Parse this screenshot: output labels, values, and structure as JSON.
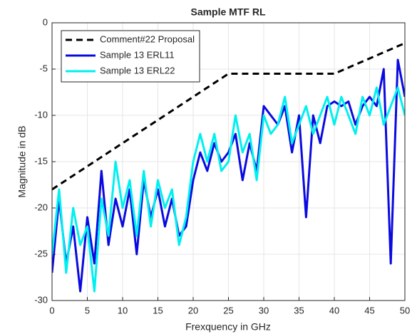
{
  "chart_data": {
    "type": "line",
    "title": "Sample MTF RL",
    "x_label": "Frexquency in GHz",
    "y_label": "Magnitude in dB",
    "xlim": [
      0,
      50
    ],
    "xticks": [
      0,
      5,
      10,
      15,
      20,
      25,
      30,
      35,
      40,
      45,
      50
    ],
    "ylim": [
      -30,
      0
    ],
    "yticks": [
      -30,
      -25,
      -20,
      -15,
      -10,
      -5,
      0
    ],
    "grid": true,
    "legend": "upper left",
    "series": [
      {
        "name": "Comment#22 Proposal",
        "color": "#000000",
        "linestyle": "dashed",
        "x": [
          0,
          25,
          40,
          50
        ],
        "values": [
          -18,
          -5.5,
          -5.5,
          -2.2
        ]
      },
      {
        "name": "Sample 13 ERL11",
        "color": "#0a0ae0",
        "linestyle": "solid",
        "x": [
          0,
          1,
          2,
          3,
          4,
          5,
          6,
          7,
          8,
          9,
          10,
          11,
          12,
          13,
          14,
          15,
          16,
          17,
          18,
          19,
          20,
          21,
          22,
          23,
          24,
          25,
          26,
          27,
          28,
          29,
          30,
          31,
          32,
          33,
          34,
          35,
          36,
          37,
          38,
          39,
          40,
          41,
          42,
          43,
          44,
          45,
          46,
          47,
          48,
          49,
          50
        ],
        "values": [
          -27,
          -19,
          -26,
          -22,
          -29,
          -21,
          -26,
          -16,
          -24,
          -19,
          -22,
          -18,
          -25,
          -17,
          -21,
          -18,
          -22,
          -19,
          -23,
          -22,
          -17,
          -14,
          -16,
          -13,
          -15,
          -14,
          -12,
          -17,
          -13,
          -16,
          -9,
          -10,
          -11,
          -9,
          -14,
          -10,
          -21,
          -10,
          -13,
          -9,
          -8.5,
          -9,
          -8.5,
          -11,
          -9,
          -8,
          -9,
          -5,
          -26,
          -4,
          -8
        ]
      },
      {
        "name": "Sample 13 ERL22",
        "color": "#00f0f0",
        "linestyle": "solid",
        "x": [
          0,
          1,
          2,
          3,
          4,
          5,
          6,
          7,
          8,
          9,
          10,
          11,
          12,
          13,
          14,
          15,
          16,
          17,
          18,
          19,
          20,
          21,
          22,
          23,
          24,
          25,
          26,
          27,
          28,
          29,
          30,
          31,
          32,
          33,
          34,
          35,
          36,
          37,
          38,
          39,
          40,
          41,
          42,
          43,
          44,
          45,
          46,
          47,
          48,
          49,
          50
        ],
        "values": [
          -25,
          -18,
          -27,
          -20,
          -24,
          -22,
          -29,
          -19,
          -23,
          -15,
          -20,
          -17,
          -23,
          -16,
          -22,
          -17,
          -20,
          -18,
          -24,
          -21,
          -15,
          -12,
          -15,
          -12,
          -16,
          -15,
          -10,
          -14,
          -12,
          -17,
          -10,
          -12,
          -11,
          -8,
          -13,
          -11,
          -9,
          -12,
          -10,
          -8,
          -11,
          -8,
          -10,
          -12,
          -8,
          -10,
          -7,
          -11,
          -9,
          -7,
          -10
        ]
      }
    ]
  }
}
